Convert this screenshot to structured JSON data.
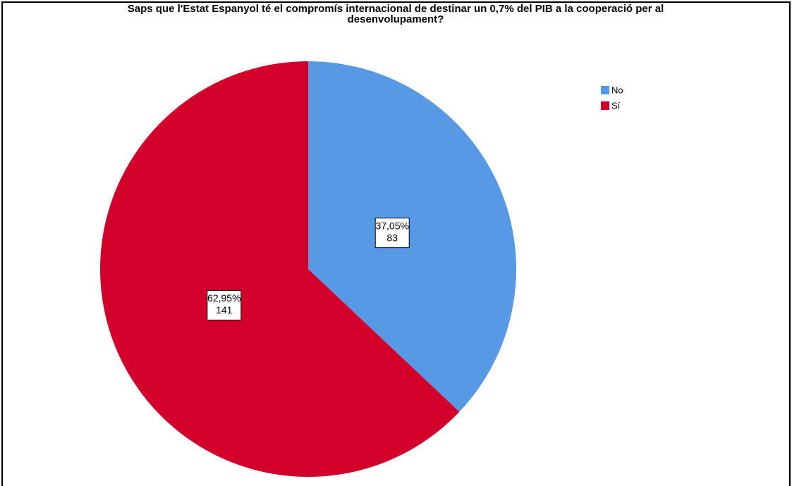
{
  "chart_data": {
    "type": "pie",
    "title": [
      "Saps que l'Estat Espanyol té el compromís internacional de destinar un 0,7% del PIB a la cooperació per al",
      "desenvolupament?"
    ],
    "categories": [
      "No",
      "Sí"
    ],
    "values": [
      37.05,
      62.95
    ],
    "value_labels": [
      "37,05%",
      "62,95%"
    ],
    "counts": [
      83,
      141
    ],
    "colors": [
      "#5899e6",
      "#d3002c"
    ],
    "legend": "right"
  }
}
